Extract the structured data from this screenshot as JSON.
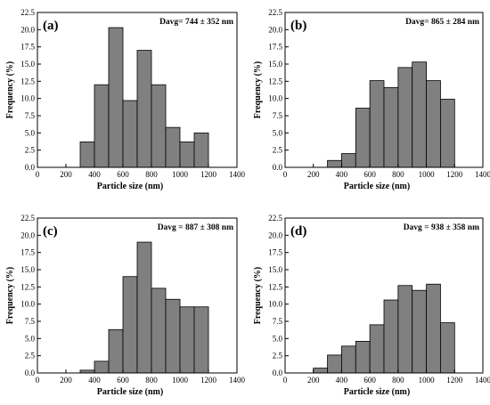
{
  "chart_data": [
    {
      "type": "bar",
      "panel_label": "(a)",
      "annotation": "Davg= 744 ± 352 nm",
      "xlabel": "Particle size (nm)",
      "ylabel": "Frequency (%)",
      "xlim": [
        0,
        1400
      ],
      "ylim": [
        0,
        22.5
      ],
      "xticks": [
        "0",
        "200",
        "400",
        "600",
        "800",
        "1000",
        "1200",
        "1400"
      ],
      "yticks": [
        "0.0",
        "2.5",
        "5.0",
        "7.5",
        "10.0",
        "12.5",
        "15.0",
        "17.5",
        "20.0",
        "22.5"
      ],
      "bin_width": 100,
      "bins": [
        300,
        400,
        500,
        600,
        700,
        800,
        900,
        1000,
        1100
      ],
      "values": [
        3.7,
        12.0,
        20.3,
        9.7,
        17.0,
        12.0,
        5.8,
        3.7,
        5.0
      ]
    },
    {
      "type": "bar",
      "panel_label": "(b)",
      "annotation": "Davg= 865 ± 284 nm",
      "xlabel": "Particle size (nm)",
      "ylabel": "Frequency (%)",
      "xlim": [
        0,
        1400
      ],
      "ylim": [
        0,
        22.5
      ],
      "xticks": [
        "0",
        "200",
        "400",
        "600",
        "800",
        "1000",
        "1200",
        "1400"
      ],
      "yticks": [
        "0.0",
        "2.5",
        "5.0",
        "7.5",
        "10.0",
        "12.5",
        "15.0",
        "17.5",
        "20.0",
        "22.5"
      ],
      "bin_width": 100,
      "bins": [
        300,
        400,
        500,
        600,
        700,
        800,
        900,
        1000,
        1100
      ],
      "values": [
        1.0,
        2.0,
        8.6,
        12.6,
        11.6,
        14.5,
        15.3,
        12.6,
        9.9
      ]
    },
    {
      "type": "bar",
      "panel_label": "(c)",
      "annotation": "Davg = 887 ± 308 nm",
      "xlabel": "Particle size (nm)",
      "ylabel": "Frequency (%)",
      "xlim": [
        0,
        1400
      ],
      "ylim": [
        0,
        22.5
      ],
      "xticks": [
        "0",
        "200",
        "400",
        "600",
        "800",
        "1000",
        "1200",
        "1400"
      ],
      "yticks": [
        "0.0",
        "2.5",
        "5.0",
        "7.5",
        "10.0",
        "12.5",
        "15.0",
        "17.5",
        "20.0",
        "22.5"
      ],
      "bin_width": 100,
      "bins": [
        300,
        400,
        500,
        600,
        700,
        800,
        900,
        1000,
        1100
      ],
      "values": [
        0.4,
        1.7,
        6.3,
        14.0,
        19.0,
        12.3,
        10.7,
        9.6,
        9.6
      ]
    },
    {
      "type": "bar",
      "panel_label": "(d)",
      "annotation": "Davg = 938 ± 358 nm",
      "xlabel": "Particle size (nm)",
      "ylabel": "Frequency (%)",
      "xlim": [
        0,
        1400
      ],
      "ylim": [
        0,
        22.5
      ],
      "xticks": [
        "0",
        "200",
        "400",
        "600",
        "800",
        "1000",
        "1200",
        "1400"
      ],
      "yticks": [
        "0.0",
        "2.5",
        "5.0",
        "7.5",
        "10.0",
        "12.5",
        "15.0",
        "17.5",
        "20.0",
        "22.5"
      ],
      "bin_width": 100,
      "bins": [
        200,
        300,
        400,
        500,
        600,
        700,
        800,
        900,
        1000,
        1100
      ],
      "values": [
        0.7,
        2.6,
        3.9,
        4.6,
        7.0,
        10.6,
        12.7,
        12.0,
        12.9,
        7.3
      ]
    }
  ],
  "colors": {
    "bar_fill": "#808080",
    "bar_stroke": "#000000",
    "axis": "#000000"
  }
}
